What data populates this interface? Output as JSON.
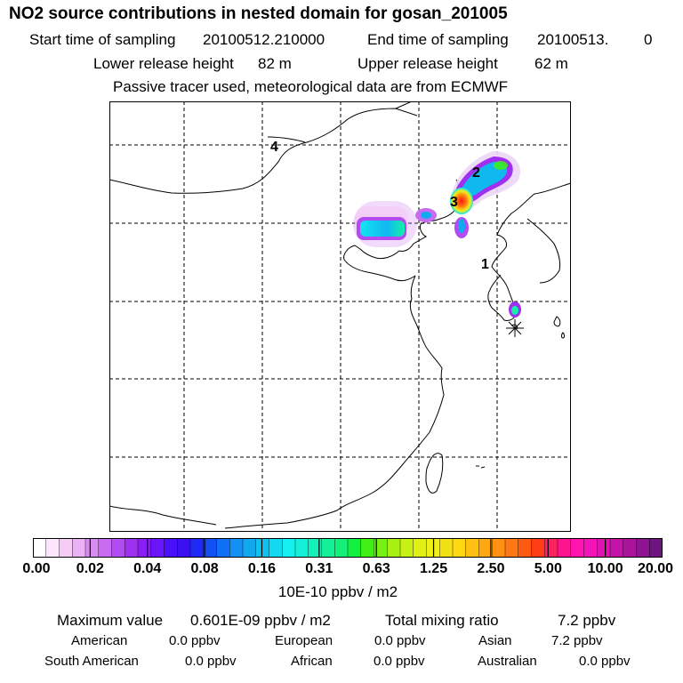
{
  "header": {
    "title": "NO2 source contributions in nested domain for gosan_201005",
    "start_label": "Start time of sampling",
    "start_value": "20100512.210000",
    "end_label": "End time of sampling",
    "end_value": "20100513.",
    "end_value2": "0",
    "lower_label": "Lower release height",
    "lower_value": "82 m",
    "upper_label": "Upper release height",
    "upper_value": "62 m",
    "note": "Passive tracer used, meteorological data are from ECMWF"
  },
  "chart_data": {
    "type": "heatmap",
    "map_labels": [
      "1",
      "2",
      "3",
      "4"
    ],
    "station_marker": "receptor-asterisk",
    "colorbar": {
      "ticks": [
        "0.00",
        "0.02",
        "0.04",
        "0.08",
        "0.16",
        "0.31",
        "0.63",
        "1.25",
        "2.50",
        "5.00",
        "10.00",
        "20.00"
      ],
      "unit": "10E-10 ppbv / m2",
      "colors": [
        "#ffffff",
        "#fbe6fb",
        "#f4ccf6",
        "#eab2f2",
        "#d98cf0",
        "#c76cf0",
        "#b34cf0",
        "#a030f0",
        "#8a1ff5",
        "#6a14fa",
        "#4a10fa",
        "#3a10f0",
        "#1e2af5",
        "#1050f5",
        "#1070f5",
        "#1490f5",
        "#12a8f0",
        "#10c0f0",
        "#12d8f0",
        "#14f0f0",
        "#14f0d8",
        "#14f0b8",
        "#14f09a",
        "#14f07a",
        "#14f040",
        "#40f014",
        "#78f014",
        "#a8f014",
        "#c8f014",
        "#e0f014",
        "#f0f014",
        "#f0e014",
        "#ffd814",
        "#ffc014",
        "#ffa814",
        "#ff9014",
        "#ff7814",
        "#ff5a14",
        "#ff3c14",
        "#ff2060",
        "#ff1490",
        "#ff14b0",
        "#f214b8",
        "#dc14b0",
        "#c414a8",
        "#aa149c",
        "#8c1490",
        "#6e1480"
      ]
    }
  },
  "stats": {
    "max_label": "Maximum value",
    "max_value": "0.601E-09 ppbv / m2",
    "total_label": "Total mixing ratio",
    "total_value": "7.2 ppbv"
  },
  "regions": [
    {
      "name": "American",
      "value": "0.0 ppbv"
    },
    {
      "name": "European",
      "value": "0.0 ppbv"
    },
    {
      "name": "Asian",
      "value": "7.2 ppbv"
    },
    {
      "name": "South American",
      "value": "0.0 ppbv"
    },
    {
      "name": "African",
      "value": "0.0 ppbv"
    },
    {
      "name": "Australian",
      "value": "0.0 ppbv"
    }
  ]
}
